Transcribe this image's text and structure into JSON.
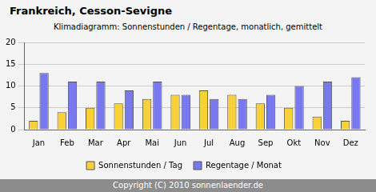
{
  "chart_data": {
    "type": "bar",
    "title": "Frankreich, Cesson-Sevigne",
    "subtitle": "Klimadiagramm: Sonnenstunden / Regentage, monatlich, gemittelt",
    "annotation": "Copyright (C) 2010 sonnenlaender.de",
    "categories": [
      "Jan",
      "Feb",
      "Mar",
      "Apr",
      "Mai",
      "Jun",
      "Jul",
      "Aug",
      "Sep",
      "Okt",
      "Nov",
      "Dez"
    ],
    "series": [
      {
        "name": "Sonnenstunden / Tag",
        "color": "#f8d038",
        "values": [
          2,
          4,
          5,
          6,
          7,
          8,
          9,
          8,
          6,
          5,
          3,
          2
        ]
      },
      {
        "name": "Regentage / Monat",
        "color": "#7878f0",
        "values": [
          13,
          11,
          11,
          9,
          11,
          8,
          7,
          7,
          8,
          10,
          11,
          12
        ]
      }
    ],
    "ylim": [
      0,
      20
    ],
    "yticks": [
      0,
      5,
      10,
      15,
      20
    ],
    "grid": true,
    "legend": "bottom"
  }
}
